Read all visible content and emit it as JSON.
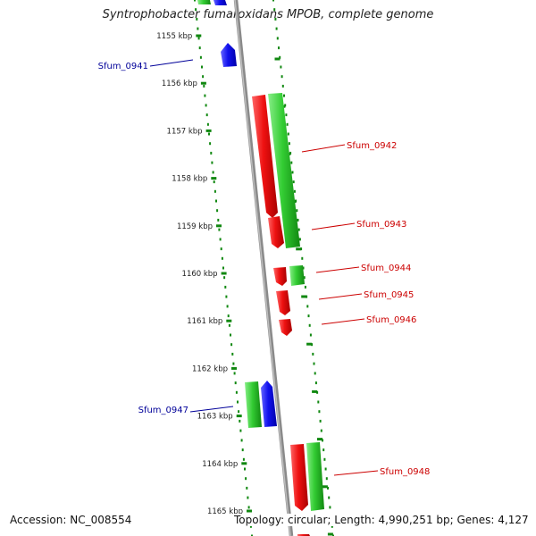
{
  "title": "Syntrophobacter fumaroxidans MPOB, complete genome",
  "footer": {
    "accession": "Accession: NC_008554",
    "summary": "Topology: circular; Length: 4,990,251 bp; Genes: 4,127"
  },
  "colors": {
    "forward_gene": "#dd1111",
    "reverse_gene": "#22bb22",
    "highlight_gene": "#1111dd",
    "backbone": "#888888",
    "tick": "#118811",
    "label_red": "#cc0000",
    "label_blue": "#000099"
  },
  "scale": {
    "unit": "kbp",
    "ticks": [
      "1155 kbp",
      "1156 kbp",
      "1157 kbp",
      "1158 kbp",
      "1159 kbp",
      "1160 kbp",
      "1161 kbp",
      "1162 kbp",
      "1163 kbp",
      "1164 kbp",
      "1165 kbp"
    ]
  },
  "genes": [
    {
      "label": "Sfum_0941",
      "label_color": "blue"
    },
    {
      "label": "Sfum_0942",
      "label_color": "red"
    },
    {
      "label": "Sfum_0943",
      "label_color": "red"
    },
    {
      "label": "Sfum_0944",
      "label_color": "red"
    },
    {
      "label": "Sfum_0945",
      "label_color": "red"
    },
    {
      "label": "Sfum_0946",
      "label_color": "red"
    },
    {
      "label": "Sfum_0947",
      "label_color": "blue"
    },
    {
      "label": "Sfum_0948",
      "label_color": "red"
    }
  ]
}
